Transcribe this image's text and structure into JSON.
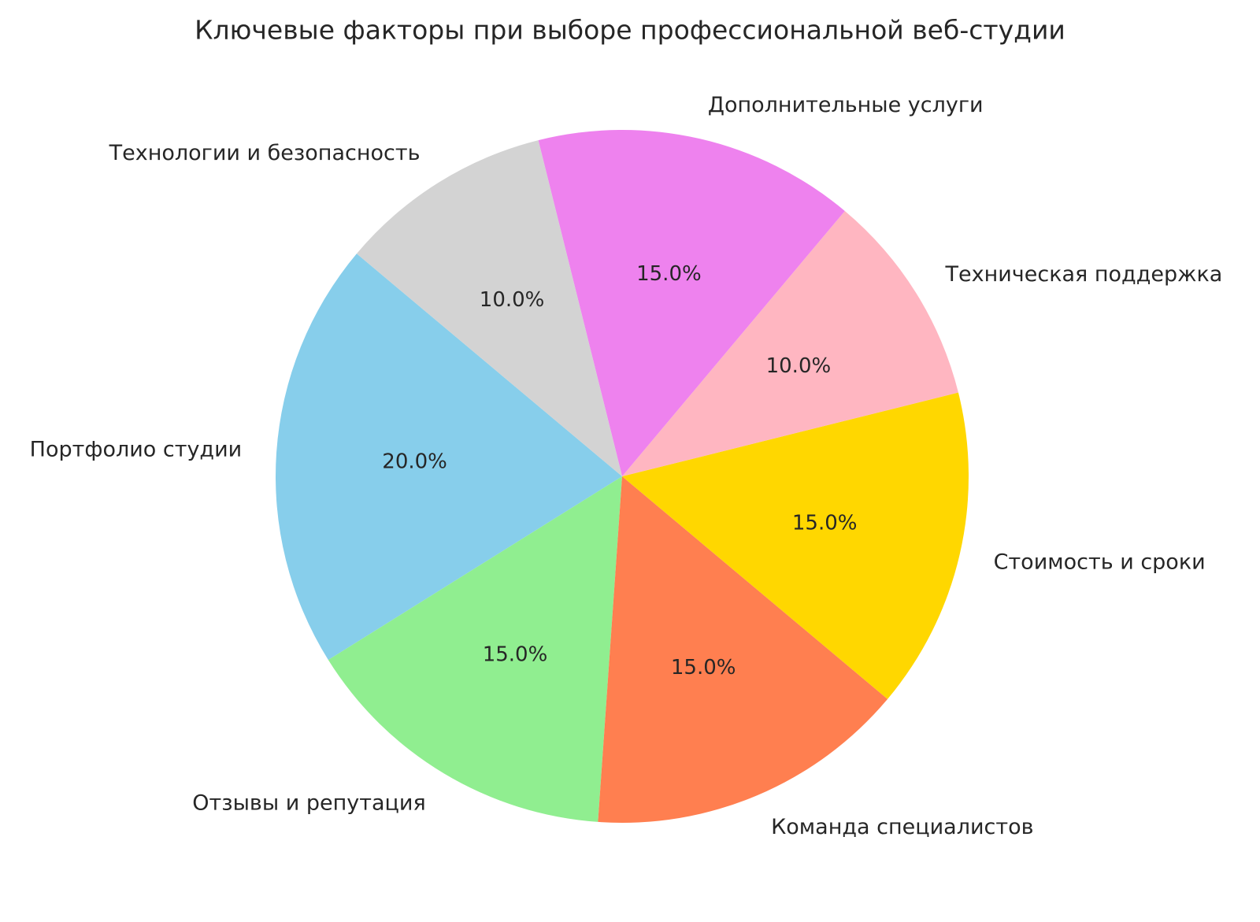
{
  "chart_data": {
    "type": "pie",
    "title": "Ключевые факторы при выборе профессиональной веб-студии",
    "legend": "none",
    "direction": "counterclockwise",
    "start_angle_deg": 140,
    "pct_distance": 0.6,
    "label_distance": 1.1,
    "text_color": "#262626",
    "background_color": "#ffffff",
    "slices": [
      {
        "label": "Портфолио студии",
        "value": 20,
        "pct_label": "20.0%",
        "color": "#87CEEB"
      },
      {
        "label": "Отзывы и репутация",
        "value": 15,
        "pct_label": "15.0%",
        "color": "#90EE90"
      },
      {
        "label": "Команда специалистов",
        "value": 15,
        "pct_label": "15.0%",
        "color": "#FF7F50"
      },
      {
        "label": "Стоимость и сроки",
        "value": 15,
        "pct_label": "15.0%",
        "color": "#FFD700"
      },
      {
        "label": "Техническая поддержка",
        "value": 10,
        "pct_label": "10.0%",
        "color": "#FFB6C1"
      },
      {
        "label": "Дополнительные услуги",
        "value": 15,
        "pct_label": "15.0%",
        "color": "#EE82EE"
      },
      {
        "label": "Технологии и безопасность",
        "value": 10,
        "pct_label": "10.0%",
        "color": "#D3D3D3"
      }
    ]
  }
}
